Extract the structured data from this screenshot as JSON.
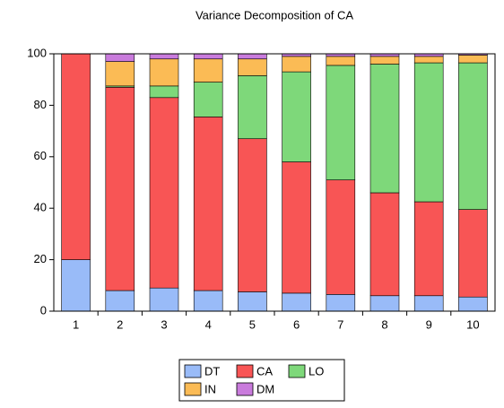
{
  "chart_data": {
    "type": "stacked_bar",
    "title": "Variance Decomposition of CA",
    "categories": [
      "1",
      "2",
      "3",
      "4",
      "5",
      "6",
      "7",
      "8",
      "9",
      "10"
    ],
    "series": [
      {
        "name": "DT",
        "color": "#99bbf8",
        "values": [
          20,
          8,
          9,
          8,
          7.5,
          7,
          6.5,
          6,
          6,
          5.5
        ]
      },
      {
        "name": "CA",
        "color": "#f85555",
        "values": [
          80,
          79,
          74,
          67.5,
          59.5,
          51,
          44.5,
          40,
          36.5,
          34
        ]
      },
      {
        "name": "LO",
        "color": "#7ed87a",
        "values": [
          0,
          0.5,
          4.5,
          13.5,
          24.5,
          35,
          44.5,
          50,
          54,
          57
        ]
      },
      {
        "name": "IN",
        "color": "#fbbb55",
        "values": [
          0,
          9.5,
          10.5,
          9,
          6.5,
          6,
          3.5,
          3,
          2.5,
          3
        ]
      },
      {
        "name": "DM",
        "color": "#c97bdc",
        "values": [
          0,
          3,
          2,
          2,
          2,
          1,
          1,
          1,
          1,
          0.5
        ]
      }
    ],
    "ylim": [
      0,
      100
    ],
    "yticks": [
      0,
      20,
      40,
      60,
      80,
      100
    ],
    "legend": "bottom"
  }
}
